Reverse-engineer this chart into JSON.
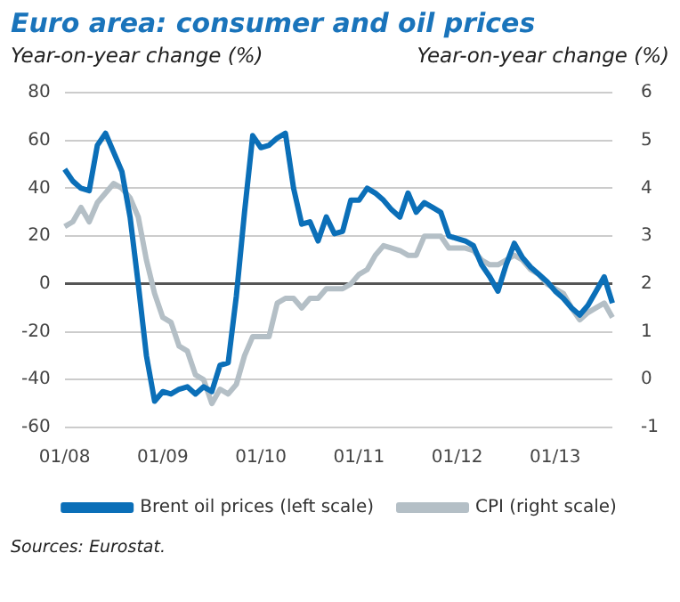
{
  "chart_data": {
    "type": "line",
    "title": "Euro area: consumer and oil prices",
    "ylabel": "Year-on-year change (%)",
    "y2label": "Year-on-year change (%)",
    "categories": [
      "01/08",
      null,
      null,
      null,
      null,
      null,
      null,
      null,
      null,
      null,
      null,
      null,
      "01/09",
      null,
      null,
      null,
      null,
      null,
      null,
      null,
      null,
      null,
      null,
      null,
      "01/10",
      null,
      null,
      null,
      null,
      null,
      null,
      null,
      null,
      null,
      null,
      null,
      "01/11",
      null,
      null,
      null,
      null,
      null,
      null,
      null,
      null,
      null,
      null,
      null,
      "01/12",
      null,
      null,
      null,
      null,
      null,
      null,
      null,
      null,
      null,
      null,
      null,
      "01/13",
      null,
      null,
      null,
      null,
      null,
      null,
      null
    ],
    "series": [
      {
        "name": "Brent oil prices (left scale)",
        "color": "#0b6fb8",
        "values": [
          48,
          43,
          40,
          39,
          58,
          63,
          55,
          47,
          28,
          0,
          -30,
          -49,
          -45,
          -46,
          -44,
          -43,
          -46,
          -43,
          -45,
          -34,
          -33,
          -5,
          30,
          62,
          57,
          58,
          61,
          63,
          40,
          25,
          26,
          18,
          28,
          21,
          22,
          35,
          35,
          40,
          38,
          35,
          31,
          28,
          38,
          30,
          34,
          32,
          30,
          20,
          19,
          18,
          16,
          8,
          3,
          -3,
          8,
          17,
          11,
          7,
          4,
          1,
          -3,
          -6,
          -10,
          -13,
          -9,
          -3,
          3,
          -8
        ]
      },
      {
        "name": "CPI (right scale)",
        "color": "#b4bfc6",
        "axis": "y2",
        "values": [
          3.2,
          3.3,
          3.6,
          3.3,
          3.7,
          3.9,
          4.1,
          4.0,
          3.8,
          3.4,
          2.5,
          1.8,
          1.3,
          1.2,
          0.7,
          0.6,
          0.1,
          0.0,
          -0.5,
          -0.2,
          -0.3,
          -0.1,
          0.5,
          0.9,
          0.9,
          0.9,
          1.6,
          1.7,
          1.7,
          1.5,
          1.7,
          1.7,
          1.9,
          1.9,
          1.9,
          2.0,
          2.2,
          2.3,
          2.6,
          2.8,
          2.75,
          2.7,
          2.6,
          2.6,
          3.0,
          3.0,
          3.0,
          2.75,
          2.75,
          2.75,
          2.7,
          2.5,
          2.4,
          2.4,
          2.5,
          2.6,
          2.5,
          2.3,
          2.2,
          2.0,
          1.9,
          1.8,
          1.5,
          1.25,
          1.4,
          1.5,
          1.6,
          1.3
        ]
      }
    ],
    "ylim": [
      -60,
      80
    ],
    "yticks": [
      -60,
      -40,
      -20,
      0,
      20,
      40,
      60,
      80
    ],
    "y2lim": [
      -1,
      6
    ],
    "y2ticks": [
      -1,
      0,
      1,
      2,
      3,
      4,
      5,
      6
    ],
    "grid": "y",
    "legend": "bottom",
    "marker": "none",
    "line_style": "solid",
    "annotations": [
      "Sources: Eurostat."
    ]
  }
}
